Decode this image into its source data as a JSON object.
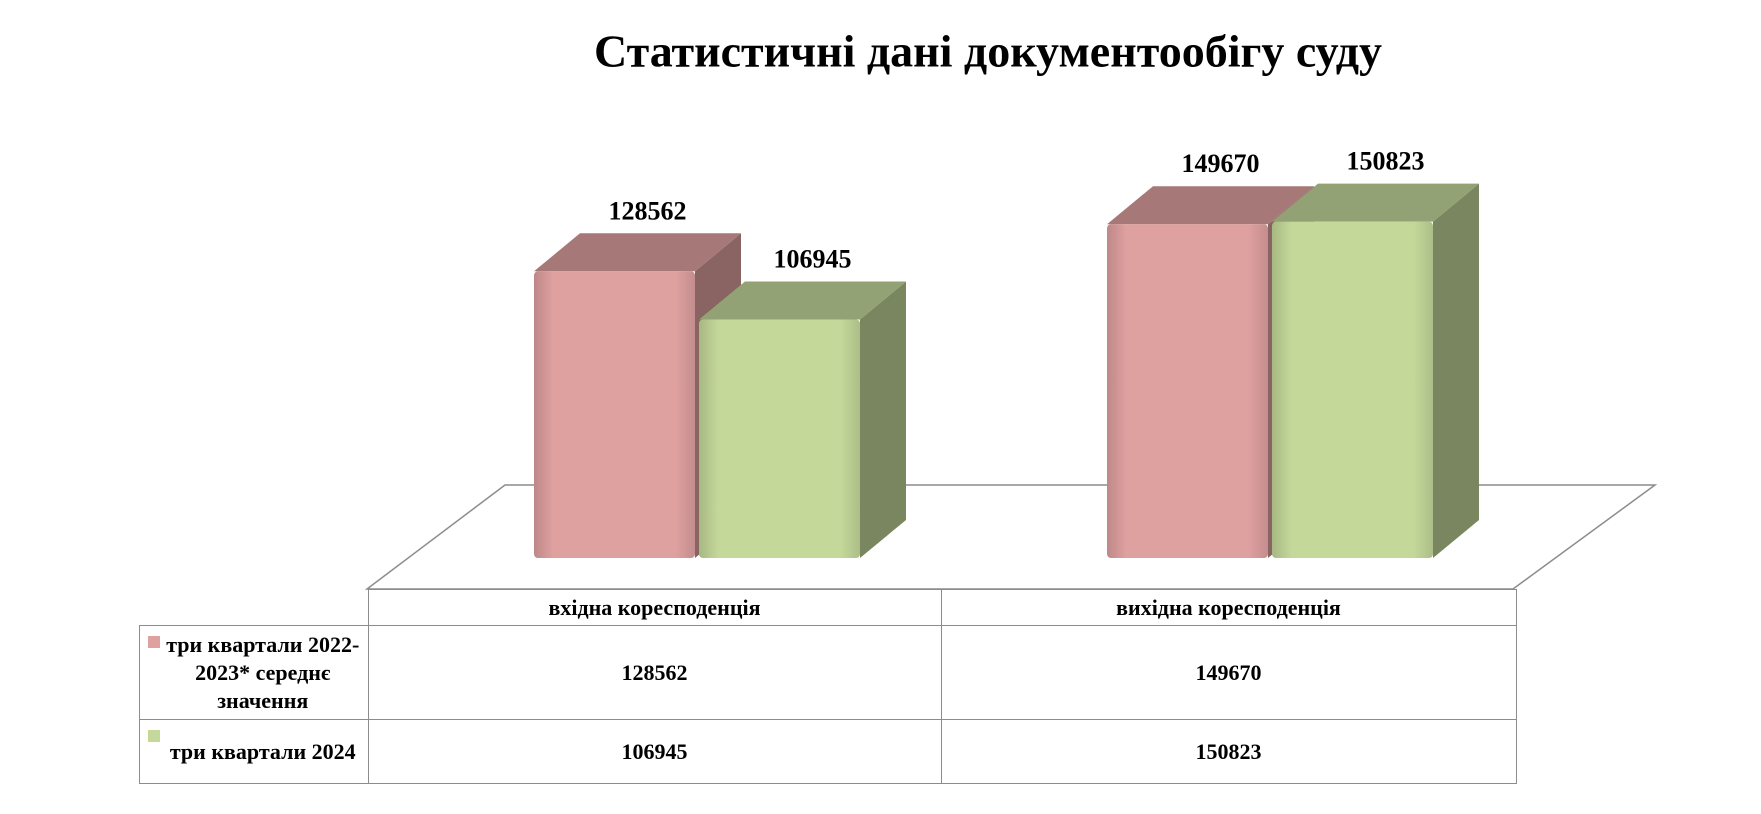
{
  "chart_data": {
    "type": "bar",
    "title": "Статистичні дані документообігу суду",
    "categories": [
      "вхідна коресподенція",
      "вихідна коресподенція"
    ],
    "series": [
      {
        "name": "три квартали 2022-2023* середнє значення",
        "color": "#dfa0a0",
        "values": [
          128562,
          149670
        ]
      },
      {
        "name": "три квартали 2024",
        "color": "#c4d89a",
        "values": [
          106945,
          150823
        ]
      }
    ]
  }
}
